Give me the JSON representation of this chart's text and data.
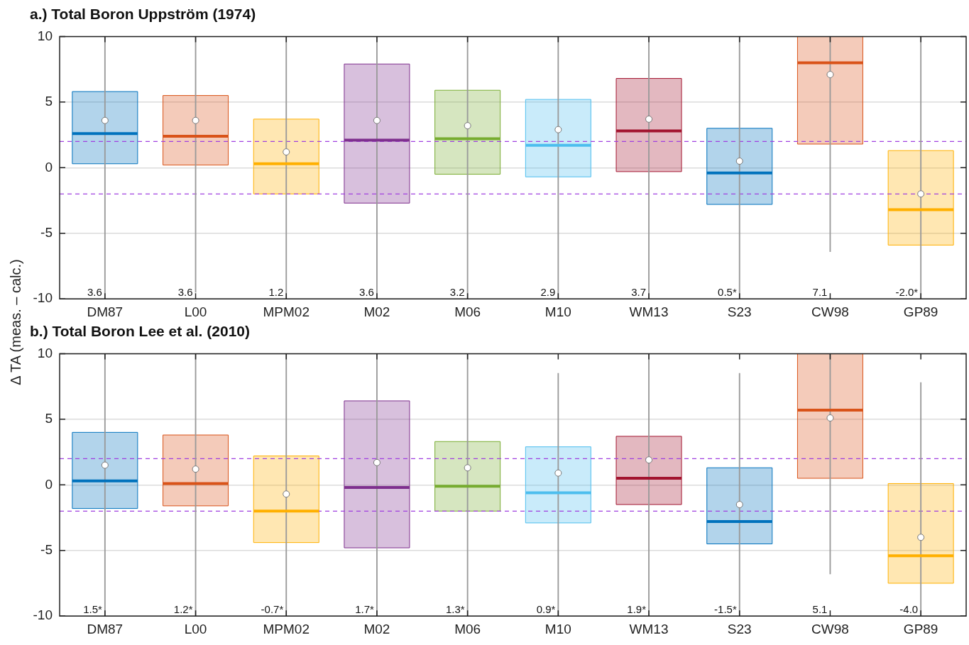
{
  "chart_data": [
    {
      "type": "box",
      "title": "a.) Total Boron Uppström (1974)",
      "ylabel": "Δ TA (meas. – calc.)",
      "categories": [
        "DM87",
        "L00",
        "MPM02",
        "M02",
        "M06",
        "M10",
        "WM13",
        "S23",
        "CW98",
        "GP89"
      ],
      "colors": [
        "#0072bd",
        "#d95319",
        "#ffb000",
        "#7e2f8e",
        "#77ac30",
        "#4dbeee",
        "#a2142f",
        "#0072bd",
        "#d95319",
        "#ffb000"
      ],
      "boxes": [
        {
          "low": -10,
          "q1": 0.3,
          "median": 2.6,
          "q3": 5.8,
          "high": 10,
          "mean": 3.6
        },
        {
          "low": -9.5,
          "q1": 0.2,
          "median": 2.4,
          "q3": 5.5,
          "high": 10,
          "mean": 3.6
        },
        {
          "low": -10,
          "q1": -2.0,
          "median": 0.3,
          "q3": 3.7,
          "high": 10,
          "mean": 1.2
        },
        {
          "low": -10,
          "q1": -2.7,
          "median": 2.1,
          "q3": 7.9,
          "high": 10,
          "mean": 3.6
        },
        {
          "low": -10,
          "q1": -0.5,
          "median": 2.2,
          "q3": 5.9,
          "high": 10,
          "mean": 3.2
        },
        {
          "low": -10,
          "q1": -0.7,
          "median": 1.7,
          "q3": 5.2,
          "high": 10,
          "mean": 2.9
        },
        {
          "low": -10,
          "q1": -0.3,
          "median": 2.8,
          "q3": 6.8,
          "high": 10,
          "mean": 3.7
        },
        {
          "low": -10,
          "q1": -2.8,
          "median": -0.4,
          "q3": 3.0,
          "high": 10,
          "mean": 0.5
        },
        {
          "low": -6.4,
          "q1": 1.8,
          "median": 8.0,
          "q3": 10,
          "high": 10,
          "mean": 7.1
        },
        {
          "low": -10,
          "q1": -5.9,
          "median": -3.2,
          "q3": 1.3,
          "high": 10,
          "mean": -2.0
        }
      ],
      "value_labels": [
        "3.6",
        "3.6",
        "1.2",
        "3.6",
        "3.2",
        "2.9",
        "3.7",
        "0.5*",
        "7.1",
        "-2.0*"
      ],
      "ylim": [
        -10,
        10
      ],
      "yticks": [
        -10,
        -5,
        0,
        5,
        10
      ],
      "grid": "y",
      "ref_lines": [
        {
          "axis": "y",
          "value": 2,
          "color": "#a040e0",
          "line_style": "dashed"
        },
        {
          "axis": "y",
          "value": -2,
          "color": "#a040e0",
          "line_style": "dashed"
        }
      ]
    },
    {
      "type": "box",
      "title": "b.) Total Boron Lee et al. (2010)",
      "categories": [
        "DM87",
        "L00",
        "MPM02",
        "M02",
        "M06",
        "M10",
        "WM13",
        "S23",
        "CW98",
        "GP89"
      ],
      "colors": [
        "#0072bd",
        "#d95319",
        "#ffb000",
        "#7e2f8e",
        "#77ac30",
        "#4dbeee",
        "#a2142f",
        "#0072bd",
        "#d95319",
        "#ffb000"
      ],
      "boxes": [
        {
          "low": -10,
          "q1": -1.8,
          "median": 0.3,
          "q3": 4.0,
          "high": 10,
          "mean": 1.5
        },
        {
          "low": -10,
          "q1": -1.6,
          "median": 0.1,
          "q3": 3.8,
          "high": 10,
          "mean": 1.2
        },
        {
          "low": -10,
          "q1": -4.4,
          "median": -2.0,
          "q3": 2.2,
          "high": 10,
          "mean": -0.7
        },
        {
          "low": -10,
          "q1": -4.8,
          "median": -0.2,
          "q3": 6.4,
          "high": 10,
          "mean": 1.7
        },
        {
          "low": -10,
          "q1": -2.0,
          "median": -0.1,
          "q3": 3.3,
          "high": 10,
          "mean": 1.3
        },
        {
          "low": -10,
          "q1": -2.9,
          "median": -0.6,
          "q3": 2.9,
          "high": 8.5,
          "mean": 0.9
        },
        {
          "low": -10,
          "q1": -1.5,
          "median": 0.5,
          "q3": 3.7,
          "high": 10,
          "mean": 1.9
        },
        {
          "low": -10,
          "q1": -4.5,
          "median": -2.8,
          "q3": 1.3,
          "high": 8.5,
          "mean": -1.5
        },
        {
          "low": -6.8,
          "q1": 0.5,
          "median": 5.7,
          "q3": 10,
          "high": 10,
          "mean": 5.1
        },
        {
          "low": -10,
          "q1": -7.5,
          "median": -5.4,
          "q3": 0.1,
          "high": 7.8,
          "mean": -4.0
        }
      ],
      "value_labels": [
        "1.5*",
        "1.2*",
        "-0.7*",
        "1.7*",
        "1.3*",
        "0.9*",
        "1.9*",
        "-1.5*",
        "5.1",
        "-4.0"
      ],
      "ylim": [
        -10,
        10
      ],
      "yticks": [
        -10,
        -5,
        0,
        5,
        10
      ],
      "grid": "y",
      "ref_lines": [
        {
          "axis": "y",
          "value": 2,
          "color": "#a040e0",
          "line_style": "dashed"
        },
        {
          "axis": "y",
          "value": -2,
          "color": "#a040e0",
          "line_style": "dashed"
        }
      ]
    }
  ]
}
